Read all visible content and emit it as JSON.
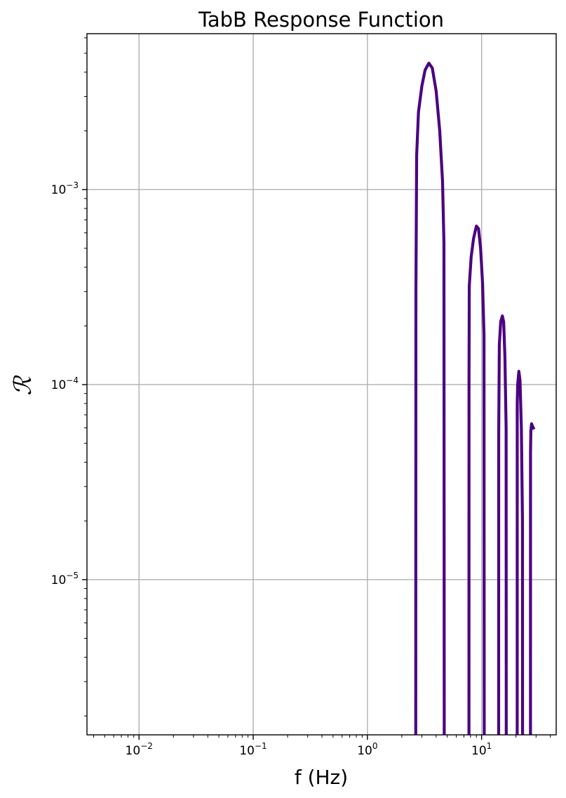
{
  "chart_data": {
    "type": "line",
    "title": "TabB Response Function",
    "xlabel": "f (Hz)",
    "ylabel": "ℛ",
    "xscale": "log",
    "yscale": "log",
    "xlim": [
      0.0035,
      45
    ],
    "ylim": [
      1.6e-06,
      0.0063
    ],
    "grid": true,
    "x_ticks": [
      {
        "value": 0.01,
        "base": "10",
        "exp": "−2"
      },
      {
        "value": 0.1,
        "base": "10",
        "exp": "−1"
      },
      {
        "value": 1,
        "base": "10",
        "exp": "0"
      },
      {
        "value": 10,
        "base": "10",
        "exp": "1"
      }
    ],
    "y_ticks": [
      {
        "value": 0.001,
        "base": "10",
        "exp": "−3"
      },
      {
        "value": 0.0001,
        "base": "10",
        "exp": "−4"
      },
      {
        "value": 1e-05,
        "base": "10",
        "exp": "−5"
      }
    ],
    "series": [
      {
        "name": "TabB",
        "color": "#4b0082",
        "x": [
          2.65,
          2.66,
          2.7,
          2.8,
          3.0,
          3.2,
          3.45,
          3.7,
          4.0,
          4.3,
          4.55,
          4.68,
          4.7,
          4.71,
          7.75,
          7.76,
          7.8,
          8.1,
          8.5,
          9.0,
          9.4,
          9.8,
          10.2,
          10.5,
          10.55,
          14.1,
          14.12,
          14.3,
          14.7,
          15.2,
          15.6,
          16.0,
          16.4,
          16.45,
          20.5,
          20.52,
          20.7,
          21.2,
          21.7,
          22.3,
          22.8,
          22.85,
          26.8,
          26.82,
          27.0,
          27.4,
          28.0,
          28.8
        ],
        "y": [
          1e-07,
          0.0003,
          0.0015,
          0.0025,
          0.0034,
          0.0041,
          0.00445,
          0.0042,
          0.0032,
          0.002,
          0.0011,
          0.00053,
          1e-05,
          1e-07,
          1e-07,
          0.0001,
          0.00032,
          0.00045,
          0.00056,
          0.00065,
          0.00063,
          0.0005,
          0.00033,
          0.00018,
          1e-07,
          1e-07,
          5.5e-05,
          0.00016,
          0.00021,
          0.000225,
          0.00021,
          0.00014,
          6e-05,
          1e-07,
          1e-07,
          8e-05,
          0.0001,
          0.000117,
          0.000105,
          6e-05,
          2e-05,
          1e-07,
          1e-07,
          4.5e-05,
          5.8e-05,
          6.3e-05,
          6.1e-05,
          5.9e-05
        ]
      }
    ]
  }
}
